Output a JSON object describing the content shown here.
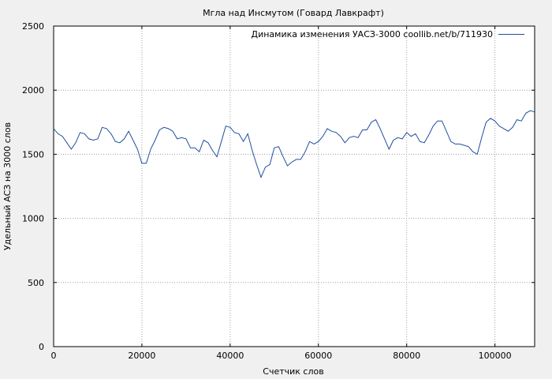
{
  "chart_data": {
    "type": "line",
    "title": "Мгла над Инсмутом (Говард Лавкрафт)",
    "xlabel": "Счетчик слов",
    "ylabel": "Удельный АСЗ на 3000 слов",
    "xlim": [
      0,
      109000
    ],
    "ylim": [
      0,
      2500
    ],
    "xticks": [
      0,
      20000,
      40000,
      60000,
      80000,
      100000
    ],
    "yticks": [
      0,
      500,
      1000,
      1500,
      2000,
      2500
    ],
    "grid": true,
    "legend_position": "top-right",
    "series": [
      {
        "name": "Динамика изменения УАСЗ-3000 coollib.net/b/711930",
        "color": "#1f4e9e",
        "x": [
          0,
          1000,
          2000,
          3000,
          4000,
          5000,
          6000,
          7000,
          8000,
          9000,
          10000,
          11000,
          12000,
          13000,
          14000,
          15000,
          16000,
          17000,
          18000,
          19000,
          20000,
          21000,
          22000,
          23000,
          24000,
          25000,
          26000,
          27000,
          28000,
          29000,
          30000,
          31000,
          32000,
          33000,
          34000,
          35000,
          36000,
          37000,
          38000,
          39000,
          40000,
          41000,
          42000,
          43000,
          44000,
          45000,
          46000,
          47000,
          48000,
          49000,
          50000,
          51000,
          52000,
          53000,
          54000,
          55000,
          56000,
          57000,
          58000,
          59000,
          60000,
          61000,
          62000,
          63000,
          64000,
          65000,
          66000,
          67000,
          68000,
          69000,
          70000,
          71000,
          72000,
          73000,
          74000,
          75000,
          76000,
          77000,
          78000,
          79000,
          80000,
          81000,
          82000,
          83000,
          84000,
          85000,
          86000,
          87000,
          88000,
          89000,
          90000,
          91000,
          92000,
          93000,
          94000,
          95000,
          96000,
          97000,
          98000,
          99000,
          100000,
          101000,
          102000,
          103000,
          104000,
          105000,
          106000,
          107000,
          108000,
          109000
        ],
        "y": [
          1700,
          1660,
          1640,
          1590,
          1540,
          1590,
          1670,
          1660,
          1620,
          1610,
          1620,
          1710,
          1700,
          1660,
          1600,
          1590,
          1620,
          1680,
          1610,
          1540,
          1430,
          1430,
          1540,
          1610,
          1690,
          1710,
          1700,
          1680,
          1620,
          1630,
          1620,
          1550,
          1550,
          1520,
          1610,
          1590,
          1530,
          1480,
          1600,
          1720,
          1710,
          1670,
          1660,
          1600,
          1660,
          1530,
          1420,
          1320,
          1400,
          1420,
          1550,
          1560,
          1480,
          1410,
          1440,
          1460,
          1460,
          1520,
          1600,
          1580,
          1600,
          1640,
          1700,
          1680,
          1670,
          1640,
          1590,
          1630,
          1640,
          1630,
          1690,
          1690,
          1750,
          1770,
          1700,
          1620,
          1540,
          1610,
          1630,
          1620,
          1670,
          1640,
          1660,
          1600,
          1590,
          1650,
          1720,
          1760,
          1760,
          1680,
          1600,
          1580,
          1580,
          1570,
          1560,
          1520,
          1500,
          1630,
          1750,
          1780,
          1760,
          1720,
          1700,
          1680,
          1710,
          1770,
          1760,
          1820,
          1840,
          1830
        ]
      }
    ]
  }
}
